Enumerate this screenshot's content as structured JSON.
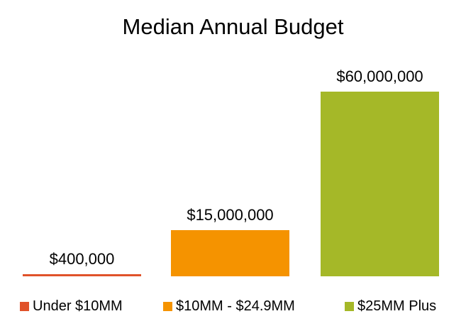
{
  "chart_data": {
    "type": "bar",
    "title": "Median Annual Budget",
    "categories": [
      "Under $10MM",
      "$10MM - $24.9MM",
      "$25MM Plus"
    ],
    "values": [
      400000,
      15000000,
      60000000
    ],
    "data_labels": [
      "$400,000",
      "$15,000,000",
      "$60,000,000"
    ],
    "colors": [
      "#E0522A",
      "#F59300",
      "#A5B828"
    ],
    "ylim": [
      0,
      60000000
    ],
    "xlabel": "",
    "ylabel": "",
    "grid": false,
    "axes_visible": false,
    "legend": "bottom"
  }
}
